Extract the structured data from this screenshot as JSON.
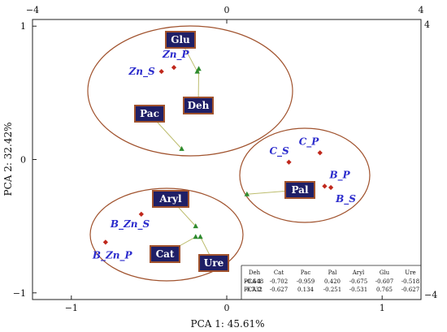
{
  "chart_data": {
    "type": "scatter",
    "title": "",
    "xlabel": "PCA 1: 45.61%",
    "ylabel": "PCA 2: 32.42%",
    "xlim": [
      -1.25,
      1.25
    ],
    "ylim": [
      -1.05,
      1.05
    ],
    "x2lim": [
      -4,
      4
    ],
    "y2lim": [
      -4,
      4
    ],
    "x_ticks": [
      -1,
      0,
      1
    ],
    "y_ticks": [
      -1,
      0,
      1
    ],
    "x2_ticks": [
      -4,
      0,
      4
    ],
    "y2_ticks": [
      4,
      -4
    ],
    "tick_labels": {
      "x": [
        "−1",
        "0",
        "1"
      ],
      "y": [
        "−1",
        "0",
        "1"
      ],
      "x2": [
        "−4",
        "0",
        "4"
      ],
      "y2": [
        "4",
        "−4"
      ]
    },
    "grid": false,
    "scores": [
      {
        "label": "Zn_P",
        "x": -0.34,
        "y": 0.69
      },
      {
        "label": "Zn_S",
        "x": -0.42,
        "y": 0.66
      },
      {
        "label": "C_S",
        "x": 0.4,
        "y": -0.02
      },
      {
        "label": "C_P",
        "x": 0.6,
        "y": 0.05
      },
      {
        "label": "B_P",
        "x": 0.63,
        "y": -0.2
      },
      {
        "label": "B_S",
        "x": 0.67,
        "y": -0.21
      },
      {
        "label": "B_Zn_S",
        "x": -0.55,
        "y": -0.41
      },
      {
        "label": "B_Zn_P",
        "x": -0.78,
        "y": -0.62
      }
    ],
    "loadings": [
      {
        "label": "Deh",
        "x": -0.18,
        "y": 0.68
      },
      {
        "label": "Cat",
        "x": -0.2,
        "y": -0.58
      },
      {
        "label": "Pac",
        "x": -0.29,
        "y": 0.08
      },
      {
        "label": "Pal",
        "x": 0.13,
        "y": -0.26
      },
      {
        "label": "Aryl",
        "x": -0.2,
        "y": -0.5
      },
      {
        "label": "Glu",
        "x": -0.19,
        "y": 0.66
      },
      {
        "label": "Ure",
        "x": -0.17,
        "y": -0.58
      }
    ],
    "legend": "none"
  },
  "loadings_table": {
    "headers": [
      "",
      "Deh",
      "Cat",
      "Pac",
      "Pal",
      "Aryl",
      "Glu",
      "Ure"
    ],
    "rows": [
      [
        "PCA 1",
        "-0.648",
        "-0.702",
        "-0.959",
        "0.420",
        "-0.675",
        "-0.607",
        "-0.518"
      ],
      [
        "PCA 2",
        "0.732",
        "-0.627",
        "0.134",
        "-0.251",
        "-0.531",
        "0.765",
        "-0.627"
      ]
    ]
  },
  "colors": {
    "score_marker": "#c0281c",
    "loading_marker": "#2e8b2e",
    "loading_line": "#bdbd6e",
    "score_label": "#2a2acc",
    "variable_box": "#1f1f66",
    "variable_box_border": "#a0522d",
    "group_ellipse": "#a0522d"
  }
}
